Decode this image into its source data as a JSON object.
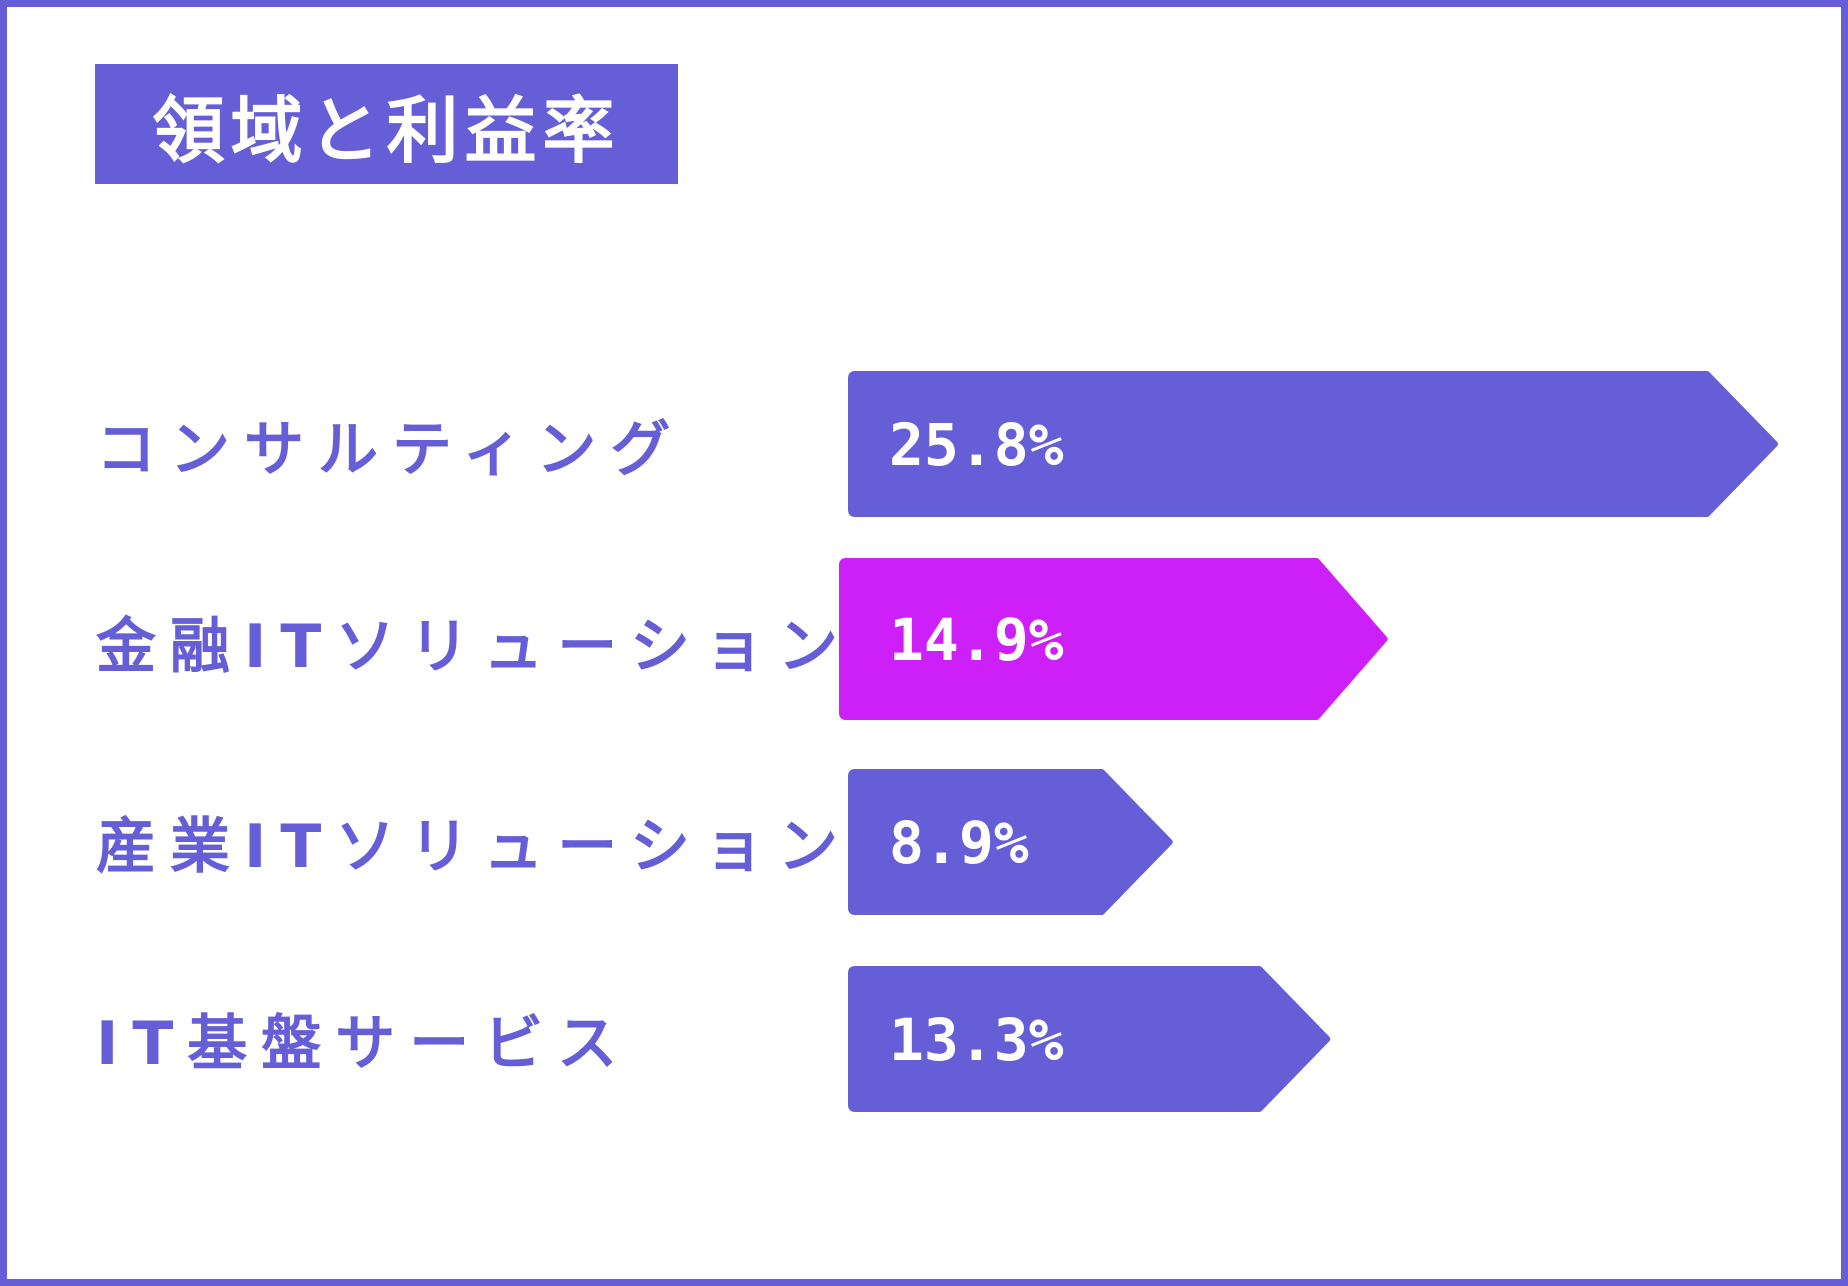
{
  "title": "領域と利益率",
  "colors": {
    "primary": "#665ed6",
    "highlight": "#cd1ff8",
    "frame": "#665ed6",
    "text_on_bar": "#ffffff"
  },
  "chart_data": {
    "type": "bar",
    "orientation": "horizontal",
    "title": "領域と利益率",
    "xlabel": "",
    "ylabel": "",
    "grid": false,
    "legend": "none",
    "categories": [
      "コンサルティング",
      "金融ITソリューション",
      "産業ITソリューション",
      "IT基盤サービス"
    ],
    "values": [
      25.8,
      14.9,
      8.9,
      13.3
    ],
    "value_labels": [
      "25.8%",
      "14.9%",
      "8.9%",
      "13.3%"
    ],
    "highlighted_category": "金融ITソリューション",
    "xlim": [
      0,
      25.8
    ]
  }
}
